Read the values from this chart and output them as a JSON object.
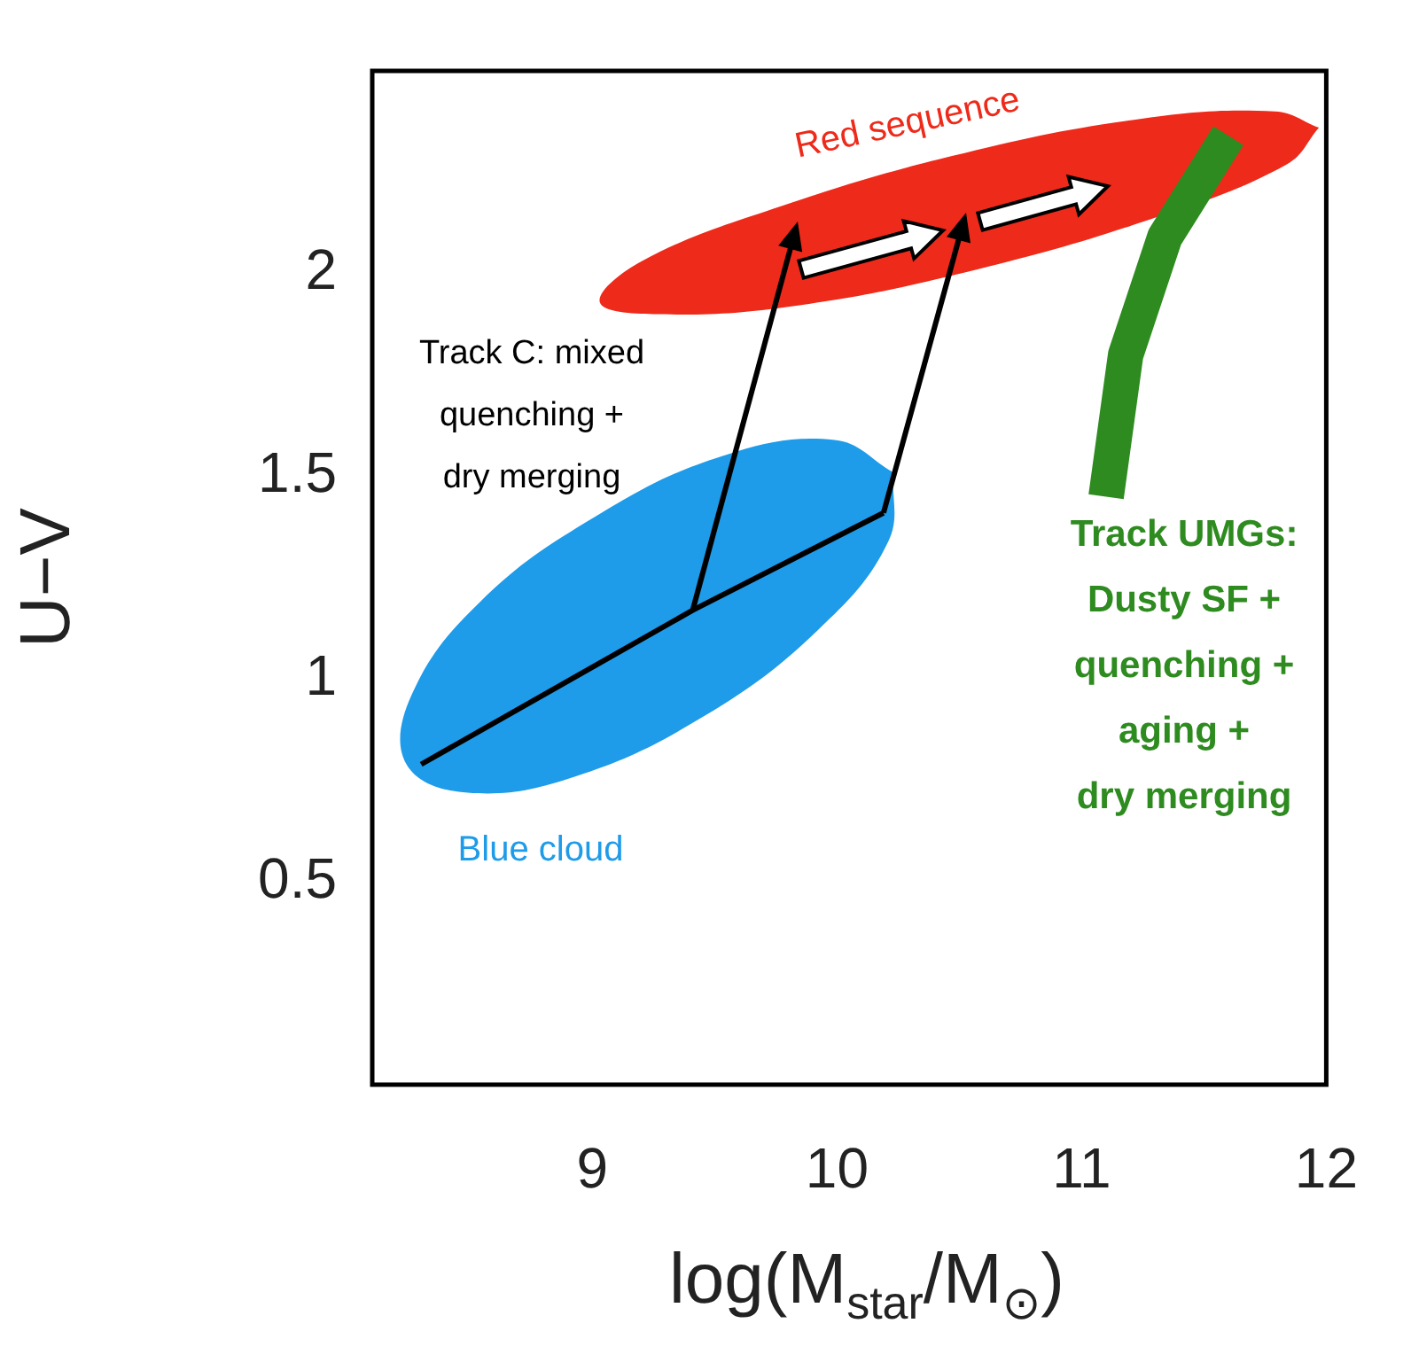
{
  "chart_data": {
    "type": "line",
    "xlabel": "log(M$_{star}$/M$_{⊙}$)",
    "ylabel": "U−V",
    "xlim": [
      8.1,
      12
    ],
    "ylim": [
      0,
      2.5
    ],
    "xticks": [
      9,
      10,
      11,
      12
    ],
    "yticks": [
      0.5,
      1.0,
      1.5,
      2.0
    ],
    "grid": false,
    "legend": false,
    "marker": "none",
    "series": [
      {
        "name": "Red sequence",
        "type": "area",
        "color": "#ee2a1a",
        "x": [
          11.97,
          11.84,
          11.31,
          10.57,
          9.82,
          9.25,
          9.03,
          9.2,
          9.74,
          10.47,
          11.22,
          11.79,
          11.97
        ],
        "values": [
          2.36,
          2.27,
          2.14,
          2.01,
          1.92,
          1.9,
          1.93,
          2.03,
          2.16,
          2.29,
          2.38,
          2.4,
          2.36
        ]
      },
      {
        "name": "Blue cloud",
        "type": "area",
        "color": "#1e9be9",
        "x": [
          10.23,
          10.21,
          9.92,
          9.46,
          8.93,
          8.49,
          8.24,
          8.26,
          8.54,
          9.01,
          9.53,
          9.99,
          10.23
        ],
        "values": [
          1.51,
          1.34,
          1.12,
          0.91,
          0.76,
          0.72,
          0.79,
          0.96,
          1.19,
          1.4,
          1.55,
          1.59,
          1.51
        ]
      },
      {
        "name": "Track C: mixed\nquenching +\ndry merging",
        "type": "line",
        "color": "#000000",
        "x": [
          8.3,
          9.41,
          10.19
        ],
        "values": [
          0.79,
          1.17,
          1.41
        ]
      },
      {
        "name": "Track UMGs:\nDusty SF +\nquenching +\naging +\ndry merging",
        "type": "line",
        "color": "#2e8b1f",
        "x": [
          11.1,
          11.18,
          11.34,
          11.6
        ],
        "values": [
          1.45,
          1.8,
          2.09,
          2.34
        ]
      }
    ]
  }
}
